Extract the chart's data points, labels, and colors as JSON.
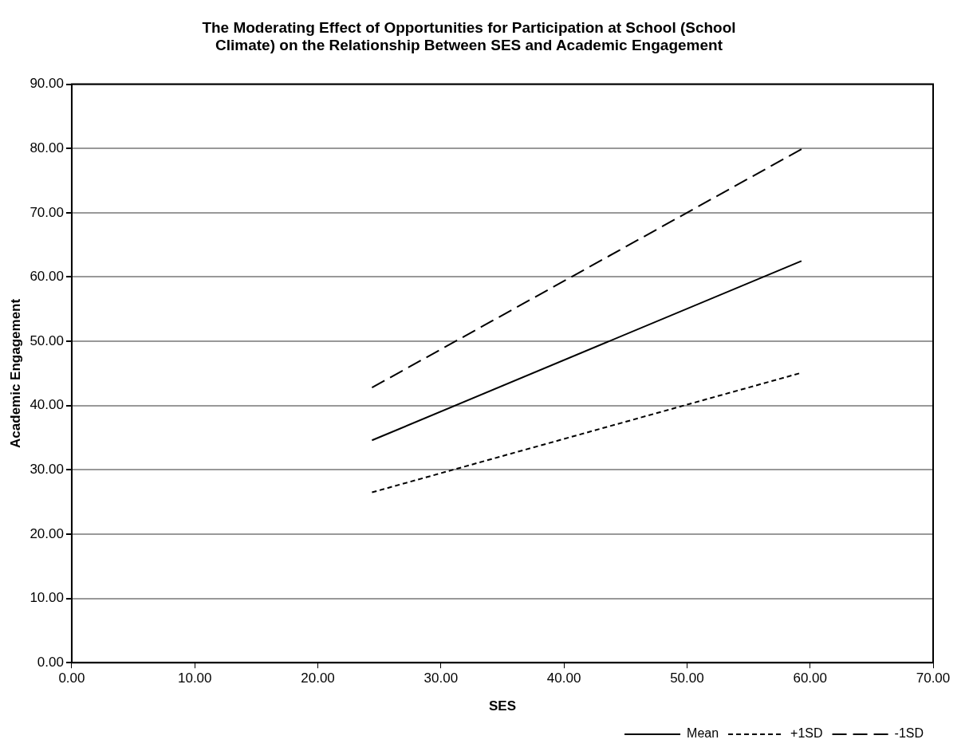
{
  "chart_data": {
    "type": "line",
    "title": "The Moderating Effect of Opportunities for Participation at School (School Climate) on the Relationship Between SES and Academic Engagement",
    "xlabel": "SES",
    "ylabel": "Academic Engagement",
    "xlim": [
      0,
      70
    ],
    "ylim": [
      0,
      90
    ],
    "xticks": [
      {
        "value": 0,
        "label": "0.00"
      },
      {
        "value": 10,
        "label": "10.00"
      },
      {
        "value": 20,
        "label": "20.00"
      },
      {
        "value": 30,
        "label": "30.00"
      },
      {
        "value": 40,
        "label": "40.00"
      },
      {
        "value": 50,
        "label": "50.00"
      },
      {
        "value": 60,
        "label": "60.00"
      },
      {
        "value": 70,
        "label": "70.00"
      }
    ],
    "yticks": [
      {
        "value": 0,
        "label": "0.00"
      },
      {
        "value": 10,
        "label": "10.00"
      },
      {
        "value": 20,
        "label": "20.00"
      },
      {
        "value": 30,
        "label": "30.00"
      },
      {
        "value": 40,
        "label": "40.00"
      },
      {
        "value": 50,
        "label": "50.00"
      },
      {
        "value": 60,
        "label": "60.00"
      },
      {
        "value": 70,
        "label": "70.00"
      },
      {
        "value": 80,
        "label": "80.00"
      },
      {
        "value": 90,
        "label": "90.00"
      }
    ],
    "x": [
      24.4,
      59.3
    ],
    "grid": "y",
    "legend": "bottom right",
    "marker": "none",
    "series": [
      {
        "name": "Mean",
        "color": "#000000",
        "line_style": "solid",
        "values": [
          34.6,
          62.5
        ]
      },
      {
        "name": "+1SD",
        "color": "#000000",
        "line_style": "dotted",
        "values": [
          26.5,
          45.1
        ]
      },
      {
        "name": "-1SD",
        "color": "#000000",
        "line_style": "dashed",
        "values": [
          42.8,
          79.9
        ]
      }
    ]
  }
}
